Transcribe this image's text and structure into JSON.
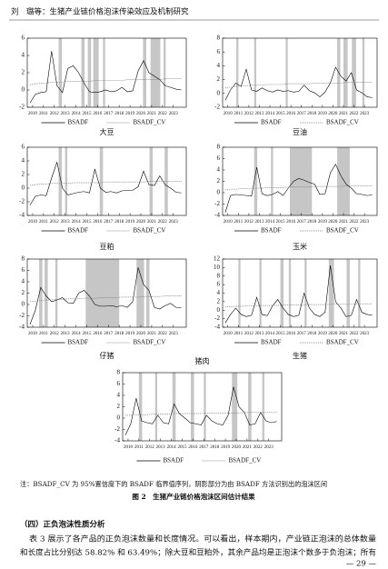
{
  "header": {
    "title": "刘　璐等：生猪产业链价格泡沫传染效应及机制研究"
  },
  "chart_data": [
    {
      "type": "line",
      "title": "大豆",
      "xlim": [
        2009.5,
        2024.2
      ],
      "xticks": [
        2010,
        2011,
        2012,
        2013,
        2014,
        2015,
        2016,
        2017,
        2018,
        2019,
        2020,
        2021,
        2022,
        2023
      ],
      "ylim": [
        -2,
        6
      ],
      "yticks": [
        -2,
        0,
        2,
        4,
        6
      ],
      "x": [
        2009.75,
        2010.25,
        2010.75,
        2011.25,
        2011.75,
        2012.25,
        2012.75,
        2013.25,
        2013.75,
        2014.25,
        2014.75,
        2015.25,
        2015.75,
        2016.25,
        2016.75,
        2017.25,
        2017.75,
        2018.25,
        2018.75,
        2019.25,
        2019.75,
        2020.25,
        2020.75,
        2021.25,
        2021.75,
        2022.25,
        2022.75,
        2023.25,
        2023.75
      ],
      "series": [
        {
          "name": "BSADF",
          "color": "#000000",
          "dotted": false,
          "values": [
            -1.5,
            -0.5,
            -0.3,
            -0.2,
            4.5,
            0.5,
            -0.3,
            2.5,
            2.8,
            2.0,
            0.8,
            -0.2,
            -0.3,
            -0.2,
            0.0,
            -0.2,
            -0.1,
            0.3,
            -0.2,
            -0.1,
            2.2,
            3.4,
            2.0,
            1.6,
            1.2,
            0.5,
            0.3,
            0.1,
            0.0
          ]
        },
        {
          "name": "BSADF_CV",
          "color": "#777777",
          "dotted": true,
          "values": [
            0.6,
            0.7,
            0.8,
            0.8,
            0.9,
            0.9,
            0.9,
            1.0,
            1.0,
            1.0,
            1.0,
            1.0,
            1.1,
            1.1,
            1.1,
            1.1,
            1.1,
            1.1,
            1.2,
            1.2,
            1.2,
            1.2,
            1.2,
            1.2,
            1.2,
            1.3,
            1.3,
            1.3,
            1.3
          ]
        }
      ],
      "shading_color": "#c6c6c6",
      "bubbles": [
        [
          2012.4,
          2012.7
        ],
        [
          2014.5,
          2014.8
        ],
        [
          2015.1,
          2015.4
        ],
        [
          2015.6,
          2016.1
        ],
        [
          2016.5,
          2016.7
        ],
        [
          2020.2,
          2020.5
        ],
        [
          2020.9,
          2021.8
        ],
        [
          2022.1,
          2022.3
        ]
      ]
    },
    {
      "type": "line",
      "title": "豆油",
      "xlim": [
        2009.5,
        2024.2
      ],
      "xticks": [
        2010,
        2011,
        2012,
        2013,
        2014,
        2015,
        2016,
        2017,
        2018,
        2019,
        2020,
        2021,
        2022,
        2023
      ],
      "ylim": [
        -2,
        8
      ],
      "yticks": [
        -2,
        0,
        2,
        4,
        6,
        8
      ],
      "x": [
        2009.75,
        2010.25,
        2010.75,
        2011.25,
        2011.75,
        2012.25,
        2012.75,
        2013.25,
        2013.75,
        2014.25,
        2014.75,
        2015.25,
        2015.75,
        2016.25,
        2016.75,
        2017.25,
        2017.75,
        2018.25,
        2018.75,
        2019.25,
        2019.75,
        2020.25,
        2020.75,
        2021.25,
        2021.75,
        2022.25,
        2022.75,
        2023.25,
        2023.75
      ],
      "series": [
        {
          "name": "BSADF",
          "color": "#000000",
          "dotted": false,
          "values": [
            -1.0,
            0.5,
            1.5,
            1.0,
            3.5,
            0.5,
            0.3,
            0.8,
            0.4,
            0.2,
            0.5,
            0.3,
            0.4,
            0.2,
            0.3,
            1.2,
            0.4,
            0.1,
            -0.5,
            0.2,
            1.5,
            3.8,
            2.5,
            1.8,
            3.0,
            0.5,
            0.1,
            -0.5,
            -0.6
          ]
        },
        {
          "name": "BSADF_CV",
          "color": "#777777",
          "dotted": true,
          "values": [
            0.8,
            0.9,
            1.0,
            1.1,
            1.1,
            1.2,
            1.2,
            1.2,
            1.3,
            1.3,
            1.3,
            1.3,
            1.4,
            1.4,
            1.4,
            1.4,
            1.4,
            1.5,
            1.5,
            1.5,
            1.5,
            1.5,
            1.5,
            1.6,
            1.6,
            1.6,
            1.6,
            1.6,
            1.6
          ]
        }
      ],
      "shading_color": "#c6c6c6",
      "bubbles": [
        [
          2010.8,
          2011.0
        ],
        [
          2012.5,
          2012.7
        ],
        [
          2015.5,
          2015.7
        ],
        [
          2020.4,
          2020.7
        ],
        [
          2021.0,
          2021.4
        ],
        [
          2021.8,
          2022.2
        ],
        [
          2022.8,
          2023.0
        ]
      ]
    },
    {
      "type": "line",
      "title": "豆粕",
      "xlim": [
        2009.5,
        2024.2
      ],
      "xticks": [
        2010,
        2011,
        2012,
        2013,
        2014,
        2015,
        2016,
        2017,
        2018,
        2019,
        2020,
        2021,
        2022,
        2023
      ],
      "ylim": [
        -4,
        6
      ],
      "yticks": [
        -4,
        -2,
        0,
        2,
        4,
        6
      ],
      "x": [
        2009.75,
        2010.25,
        2010.75,
        2011.25,
        2011.75,
        2012.25,
        2012.75,
        2013.25,
        2013.75,
        2014.25,
        2014.75,
        2015.25,
        2015.75,
        2016.25,
        2016.75,
        2017.25,
        2017.75,
        2018.25,
        2018.75,
        2019.25,
        2019.75,
        2020.25,
        2020.75,
        2021.25,
        2021.75,
        2022.25,
        2022.75,
        2023.25,
        2023.75
      ],
      "series": [
        {
          "name": "BSADF",
          "color": "#000000",
          "dotted": false,
          "values": [
            -2.5,
            -1.2,
            -1.0,
            -1.1,
            1.5,
            3.8,
            0.0,
            -1.0,
            -0.8,
            -0.6,
            -0.5,
            -0.7,
            2.8,
            0.0,
            -0.6,
            -0.5,
            -0.7,
            -0.4,
            -0.3,
            -0.3,
            0.2,
            2.5,
            0.5,
            0.4,
            1.8,
            0.5,
            0.0,
            -0.6,
            -0.7
          ]
        },
        {
          "name": "BSADF_CV",
          "color": "#777777",
          "dotted": true,
          "values": [
            0.4,
            0.5,
            0.6,
            0.6,
            0.7,
            0.7,
            0.7,
            0.7,
            0.8,
            0.8,
            0.8,
            0.8,
            0.8,
            0.8,
            0.9,
            0.9,
            0.9,
            0.9,
            0.9,
            0.9,
            0.9,
            0.9,
            1.0,
            1.0,
            1.0,
            1.0,
            1.0,
            1.0,
            1.0
          ]
        }
      ],
      "shading_color": "#c6c6c6",
      "bubbles": [
        [
          2012.4,
          2012.7
        ],
        [
          2013.0,
          2013.2
        ],
        [
          2016.2,
          2016.5
        ],
        [
          2020.8,
          2021.1
        ],
        [
          2022.2,
          2022.5
        ]
      ]
    },
    {
      "type": "line",
      "title": "玉米",
      "xlim": [
        2009.5,
        2024.2
      ],
      "xticks": [
        2010,
        2011,
        2012,
        2013,
        2014,
        2015,
        2016,
        2017,
        2018,
        2019,
        2020,
        2021,
        2022,
        2023
      ],
      "ylim": [
        -4,
        8
      ],
      "yticks": [
        -4,
        -2,
        0,
        2,
        4,
        6,
        8
      ],
      "x": [
        2009.75,
        2010.25,
        2010.75,
        2011.25,
        2011.75,
        2012.25,
        2012.75,
        2013.25,
        2013.75,
        2014.25,
        2014.75,
        2015.25,
        2015.75,
        2016.25,
        2016.75,
        2017.25,
        2017.75,
        2018.25,
        2018.75,
        2019.25,
        2019.75,
        2020.25,
        2020.75,
        2021.25,
        2021.75,
        2022.25,
        2022.75,
        2023.25,
        2023.75
      ],
      "series": [
        {
          "name": "BSADF",
          "color": "#000000",
          "dotted": false,
          "values": [
            -3.5,
            -0.5,
            -0.3,
            -0.4,
            -0.5,
            -0.6,
            4.5,
            -0.2,
            -0.5,
            -0.3,
            0.2,
            -0.5,
            0.8,
            2.0,
            2.5,
            2.2,
            1.8,
            1.5,
            -0.3,
            -0.2,
            3.5,
            5.0,
            3.0,
            1.5,
            0.8,
            -0.2,
            -0.3,
            -0.5,
            -0.4
          ]
        },
        {
          "name": "BSADF_CV",
          "color": "#777777",
          "dotted": true,
          "values": [
            0.5,
            0.6,
            0.6,
            0.7,
            0.7,
            0.8,
            0.8,
            0.8,
            0.9,
            0.9,
            0.9,
            0.9,
            1.0,
            1.0,
            1.0,
            1.0,
            1.0,
            1.1,
            1.1,
            1.1,
            1.1,
            1.1,
            1.1,
            1.2,
            1.2,
            1.2,
            1.2,
            1.2,
            1.2
          ]
        }
      ],
      "shading_color": "#c6c6c6",
      "bubbles": [
        [
          2012.5,
          2012.8
        ],
        [
          2014.1,
          2014.3
        ],
        [
          2015.9,
          2018.0
        ],
        [
          2020.4,
          2021.6
        ]
      ]
    },
    {
      "type": "line",
      "title": "仔猪",
      "xlim": [
        2009.5,
        2024.2
      ],
      "xticks": [
        2010,
        2011,
        2012,
        2013,
        2014,
        2015,
        2016,
        2017,
        2018,
        2019,
        2020,
        2021,
        2022,
        2023
      ],
      "ylim": [
        -4,
        8
      ],
      "yticks": [
        -4,
        -2,
        0,
        2,
        4,
        6,
        8
      ],
      "x": [
        2009.75,
        2010.25,
        2010.75,
        2011.25,
        2011.75,
        2012.25,
        2012.75,
        2013.25,
        2013.75,
        2014.25,
        2014.75,
        2015.25,
        2015.75,
        2016.25,
        2016.75,
        2017.25,
        2017.75,
        2018.25,
        2018.75,
        2019.25,
        2019.75,
        2020.25,
        2020.75,
        2021.25,
        2021.75,
        2022.25,
        2022.75,
        2023.25,
        2023.75
      ],
      "series": [
        {
          "name": "BSADF",
          "color": "#000000",
          "dotted": false,
          "values": [
            -3.5,
            -1.0,
            3.0,
            1.5,
            0.5,
            0.8,
            1.2,
            0.3,
            0.2,
            2.0,
            2.5,
            1.5,
            0.0,
            -0.3,
            -0.3,
            -0.2,
            -0.4,
            -0.2,
            -0.5,
            0.5,
            6.5,
            3.5,
            2.5,
            -0.5,
            -0.8,
            -0.2,
            0.2,
            -0.5,
            -0.6
          ]
        },
        {
          "name": "BSADF_CV",
          "color": "#777777",
          "dotted": true,
          "values": [
            0.5,
            0.6,
            0.7,
            0.8,
            0.8,
            0.9,
            0.9,
            1.0,
            1.0,
            1.0,
            1.1,
            1.1,
            1.1,
            1.2,
            1.2,
            1.2,
            1.2,
            1.3,
            1.3,
            1.3,
            1.3,
            1.4,
            1.4,
            1.4,
            1.4,
            1.5,
            1.5,
            1.5,
            1.5
          ]
        }
      ],
      "shading_color": "#c6c6c6",
      "bubbles": [
        [
          2010.6,
          2010.9
        ],
        [
          2011.1,
          2011.4
        ],
        [
          2012.1,
          2012.3
        ],
        [
          2014.9,
          2018.0
        ],
        [
          2019.6,
          2020.3
        ],
        [
          2020.5,
          2020.8
        ]
      ]
    },
    {
      "type": "line",
      "title": "生猪",
      "xlim": [
        2009.5,
        2024.2
      ],
      "xticks": [
        2010,
        2011,
        2012,
        2013,
        2014,
        2015,
        2016,
        2017,
        2018,
        2019,
        2020,
        2021,
        2022,
        2023
      ],
      "ylim": [
        -4,
        12
      ],
      "yticks": [
        -4,
        -2,
        0,
        2,
        4,
        6,
        8,
        10,
        12
      ],
      "x": [
        2009.75,
        2010.25,
        2010.75,
        2011.25,
        2011.75,
        2012.25,
        2012.75,
        2013.25,
        2013.75,
        2014.25,
        2014.75,
        2015.25,
        2015.75,
        2016.25,
        2016.75,
        2017.25,
        2017.75,
        2018.25,
        2018.75,
        2019.25,
        2019.75,
        2020.25,
        2020.75,
        2021.25,
        2021.75,
        2022.25,
        2022.75,
        2023.25,
        2023.75
      ],
      "series": [
        {
          "name": "BSADF",
          "color": "#000000",
          "dotted": false,
          "values": [
            -3.0,
            -1.0,
            0.5,
            -1.0,
            -1.5,
            -1.2,
            3.0,
            -1.0,
            -1.3,
            1.0,
            2.5,
            0.5,
            -1.0,
            -1.5,
            -1.2,
            4.0,
            0.5,
            -1.0,
            -1.5,
            -0.5,
            10.5,
            2.0,
            0.5,
            -1.5,
            -1.2,
            2.5,
            -0.5,
            -1.0,
            -1.2
          ]
        },
        {
          "name": "BSADF_CV",
          "color": "#777777",
          "dotted": true,
          "values": [
            0.8,
            0.8,
            0.9,
            0.9,
            1.0,
            1.0,
            1.0,
            1.1,
            1.1,
            1.1,
            1.1,
            1.2,
            1.2,
            1.2,
            1.2,
            1.3,
            1.3,
            1.3,
            1.3,
            1.3,
            1.4,
            1.4,
            1.4,
            1.4,
            1.4,
            1.5,
            1.5,
            1.5,
            1.5
          ]
        }
      ],
      "shading_color": "#c6c6c6",
      "bubbles": [
        [
          2011.0,
          2011.2
        ],
        [
          2013.0,
          2013.2
        ],
        [
          2015.0,
          2015.3
        ],
        [
          2015.8,
          2016.0
        ],
        [
          2017.3,
          2017.5
        ],
        [
          2019.6,
          2020.1
        ],
        [
          2021.3,
          2021.6
        ],
        [
          2022.4,
          2022.6
        ]
      ]
    },
    {
      "type": "line",
      "title": "猪肉",
      "xlim": [
        2009.5,
        2024.2
      ],
      "xticks": [
        2010,
        2011,
        2012,
        2013,
        2014,
        2015,
        2016,
        2017,
        2018,
        2019,
        2020,
        2021,
        2022,
        2023
      ],
      "ylim": [
        -4,
        8
      ],
      "yticks": [
        -4,
        -2,
        0,
        2,
        4,
        6,
        8
      ],
      "x": [
        2009.75,
        2010.25,
        2010.75,
        2011.25,
        2011.75,
        2012.25,
        2012.75,
        2013.25,
        2013.75,
        2014.25,
        2014.75,
        2015.25,
        2015.75,
        2016.25,
        2016.75,
        2017.25,
        2017.75,
        2018.25,
        2018.75,
        2019.25,
        2019.75,
        2020.25,
        2020.75,
        2021.25,
        2021.75,
        2022.25,
        2022.75,
        2023.25,
        2023.75
      ],
      "series": [
        {
          "name": "BSADF",
          "color": "#000000",
          "dotted": false,
          "values": [
            -3.0,
            -1.0,
            3.5,
            -0.5,
            -0.8,
            -1.0,
            0.5,
            -0.8,
            -1.0,
            2.5,
            0.8,
            0.0,
            -0.8,
            -1.0,
            -1.2,
            0.5,
            -0.5,
            -1.0,
            -1.2,
            0.5,
            5.5,
            2.0,
            1.0,
            -1.2,
            -1.0,
            1.0,
            -0.5,
            -0.8,
            -0.6
          ]
        },
        {
          "name": "BSADF_CV",
          "color": "#777777",
          "dotted": true,
          "values": [
            0.5,
            0.5,
            0.6,
            0.6,
            0.6,
            0.7,
            0.7,
            0.7,
            0.7,
            0.8,
            0.8,
            0.8,
            0.8,
            0.8,
            0.8,
            0.9,
            0.9,
            0.9,
            0.9,
            0.9,
            0.9,
            0.9,
            1.0,
            1.0,
            1.0,
            1.0,
            1.0,
            1.0,
            1.0
          ]
        }
      ],
      "shading_color": "#c6c6c6",
      "bubbles": [
        [
          2011.0,
          2011.3
        ],
        [
          2012.5,
          2012.7
        ],
        [
          2014.1,
          2014.4
        ],
        [
          2015.8,
          2016.1
        ],
        [
          2017.0,
          2017.2
        ],
        [
          2019.6,
          2020.1
        ],
        [
          2021.1,
          2021.4
        ],
        [
          2022.4,
          2022.6
        ]
      ]
    }
  ],
  "figure": {
    "note": "注：BSADF_CV 为 95%置信度下的 BSADF 临界值序列，阴影部分为由 BSADF 方法识别出的泡沫区间",
    "caption": "图 2　生猪产业链价格泡沫区间估计结果"
  },
  "section": {
    "heading": "（四）正负泡沫性质分析",
    "lines": [
      "表 3 展示了各产品的正负泡沫数量和长度情况。可以看出，样本期内，产业链正泡沫的总体数量",
      "和长度占比分别达 58.82% 和 63.49%；除大豆和豆粕外，其余产品均是正泡沫个数多于负泡沫；所有"
    ]
  },
  "page_number": "— 29 —"
}
